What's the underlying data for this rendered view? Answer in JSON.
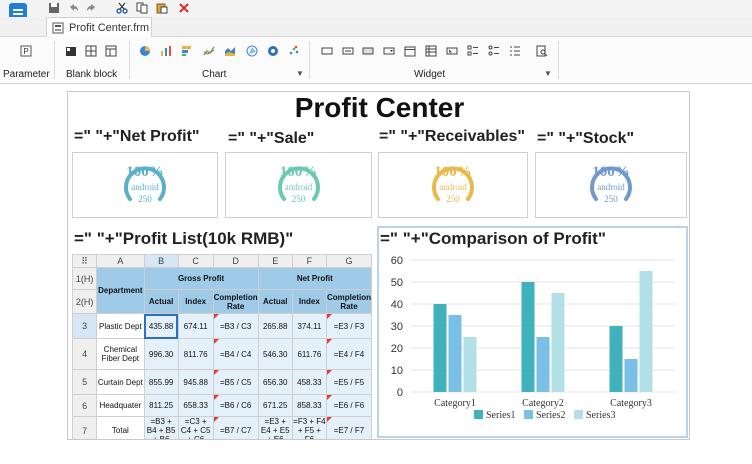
{
  "window": {
    "file_tab": "Profit Center.frm"
  },
  "ribbon": {
    "groups": {
      "parameter": "Parameter",
      "blank_block": "Blank block",
      "chart": "Chart",
      "widget": "Widget"
    }
  },
  "report": {
    "title": "Profit Center",
    "kpi_formulas": [
      "=\"  \"+\"Net Profit\"",
      "=\"  \"+\"Sale\"",
      "=\"  \"+\"Receivables\"",
      "=\"  \"+\"Stock\""
    ],
    "gauges": [
      {
        "pct": "100%",
        "name": "android",
        "value": "250",
        "color": "#5ab0c9"
      },
      {
        "pct": "100%",
        "name": "android",
        "value": "250",
        "color": "#6cc9b1"
      },
      {
        "pct": "100%",
        "name": "android",
        "value": "250",
        "color": "#e9b94b"
      },
      {
        "pct": "100%",
        "name": "android",
        "value": "250",
        "color": "#6f99cf"
      }
    ],
    "list_formula": "=\"  \"+\"Profit List(10k RMB)\"",
    "chart_formula": "=\"  \"+\"Comparison of Profit\""
  },
  "sheet": {
    "col_headers": [
      "A",
      "B",
      "C",
      "D",
      "E",
      "F",
      "G"
    ],
    "row_headers": [
      "1(H)",
      "2(H)",
      "3",
      "4",
      "5",
      "6",
      "7"
    ],
    "department_label": "Department",
    "group_headers": [
      "Gross Profit",
      "Net Profit"
    ],
    "sub_headers": [
      "Actual",
      "Index",
      "Completion Rate",
      "Actual",
      "Index",
      "Completion Rate"
    ],
    "rows": [
      {
        "dept": "Plastic Dept",
        "v": [
          "435.88",
          "674.11",
          "=B3 / C3",
          "265.88",
          "374.11",
          "=E3 / F3"
        ]
      },
      {
        "dept": "Chemical Fiber Dept",
        "v": [
          "996.30",
          "811.76",
          "=B4 / C4",
          "546.30",
          "611.76",
          "=E4 / F4"
        ]
      },
      {
        "dept": "Curtain Dept",
        "v": [
          "855.99",
          "945.88",
          "=B5 / C5",
          "656.30",
          "458.33",
          "=E5 / F5"
        ]
      },
      {
        "dept": "Headquater",
        "v": [
          "811.25",
          "658.33",
          "=B6 / C6",
          "671.25",
          "858.33",
          "=E6 / F6"
        ]
      },
      {
        "dept": "Total",
        "v": [
          "=B3 + B4 + B5 + B6",
          "=C3 + C4 + C5 + C6",
          "=B7 / C7",
          "=E3 + E4 + E5 + E6",
          "=F3 + F4 + F5 + F6",
          "=E7 / F7"
        ]
      }
    ]
  },
  "chart_data": {
    "type": "bar",
    "categories": [
      "Category1",
      "Category2",
      "Category3"
    ],
    "series": [
      {
        "name": "Series1",
        "values": [
          40,
          50,
          30
        ],
        "color": "#40b1bd"
      },
      {
        "name": "Series2",
        "values": [
          35,
          25,
          15
        ],
        "color": "#79bfe6"
      },
      {
        "name": "Series3",
        "values": [
          25,
          45,
          55
        ],
        "color": "#b3e0e6"
      }
    ],
    "ylim": [
      0,
      60
    ],
    "yticks": [
      "0",
      "10",
      "20",
      "30",
      "40",
      "50",
      "60"
    ],
    "grid": true,
    "legend": "bottom"
  }
}
